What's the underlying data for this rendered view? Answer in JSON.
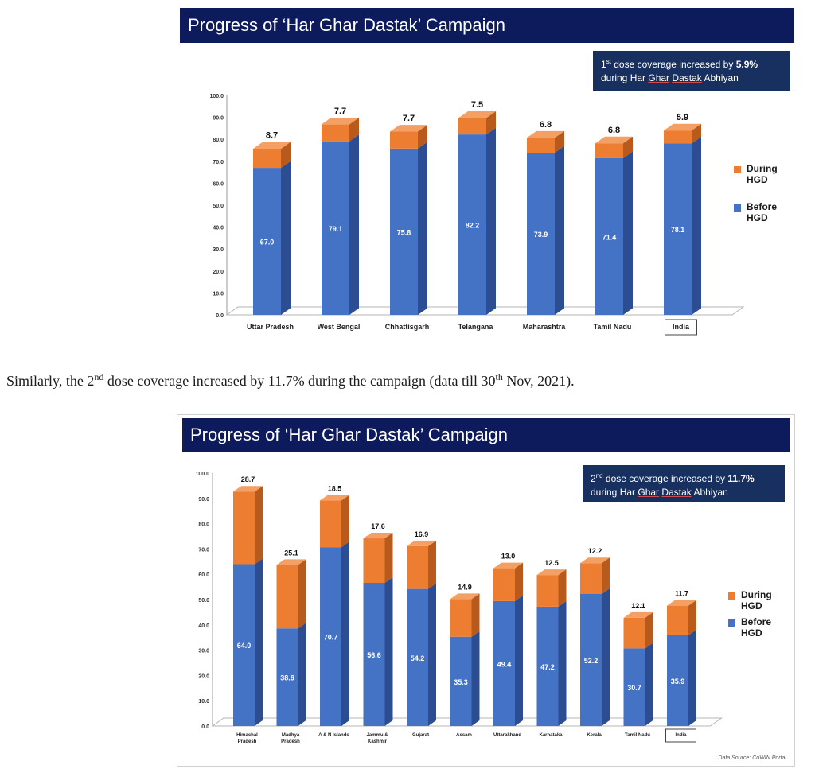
{
  "colors": {
    "before": "#4472c4",
    "before_side": "#2c4d92",
    "before_top": "#6a8fd6",
    "during": "#ed7d31",
    "during_side": "#b85a1c",
    "during_top": "#f4a064",
    "banner": "#0d1a5b",
    "note_bg": "#17305f"
  },
  "caption": {
    "part1": "Similarly, the 2",
    "sup1": "nd",
    "part2": " dose coverage increased by 11.7% during the campaign (data till 30",
    "sup2": "th",
    "part3": " Nov, 2021)."
  },
  "chart_data": [
    {
      "type": "bar",
      "stacked": true,
      "title": "Progress of ‘Har Ghar Dastak’ Campaign",
      "note": {
        "sup": "st",
        "prefix": "1",
        "text": " dose coverage increased by ",
        "value": "5.9%",
        "line2_pre": "during Har ",
        "line2_ul1": "Ghar",
        "line2_mid": " ",
        "line2_ul2": "Dastak",
        "line2_post": " Abhiyan"
      },
      "categories": [
        "Uttar Pradesh",
        "West Bengal",
        "Chhattisgarh",
        "Telangana",
        "Maharashtra",
        "Tamil Nadu",
        "India"
      ],
      "series": [
        {
          "name": "Before HGD",
          "values": [
            67.0,
            79.1,
            75.8,
            82.2,
            73.9,
            71.4,
            78.1
          ],
          "labels": [
            "67.0",
            "79.1",
            "75.8",
            "82.2",
            "73.9",
            "71.4",
            "78.1"
          ]
        },
        {
          "name": "During HGD",
          "values": [
            8.7,
            7.7,
            7.7,
            7.5,
            6.8,
            6.8,
            5.9
          ],
          "labels": [
            "8.7",
            "7.7",
            "7.7",
            "7.5",
            "6.8",
            "6.8",
            "5.9"
          ]
        }
      ],
      "legend": [
        {
          "key": "during",
          "label": "During HGD"
        },
        {
          "key": "before",
          "label": "Before HGD"
        }
      ],
      "yticks": [
        "0.0",
        "10.0",
        "20.0",
        "30.0",
        "40.0",
        "50.0",
        "60.0",
        "70.0",
        "80.0",
        "90.0",
        "100.0"
      ],
      "ylim": [
        0,
        100
      ],
      "legend_position": "right"
    },
    {
      "type": "bar",
      "stacked": true,
      "title": "Progress of ‘Har Ghar Dastak’ Campaign",
      "note": {
        "sup": "nd",
        "prefix": "2",
        "text": " dose coverage increased by ",
        "value": "11.7%",
        "line2_pre": "during Har ",
        "line2_ul1": "Ghar",
        "line2_mid": " ",
        "line2_ul2": "Dastak",
        "line2_post": " Abhiyan"
      },
      "categories": [
        [
          "Himachal",
          "Pradesh"
        ],
        [
          "Madhya",
          "Pradesh"
        ],
        [
          "A & N Islands"
        ],
        [
          "Jammu &",
          "Kashmir"
        ],
        [
          "Gujarat"
        ],
        [
          "Assam"
        ],
        [
          "Uttarakhand"
        ],
        [
          "Karnataka"
        ],
        [
          "Kerala"
        ],
        [
          "Tamil Nadu"
        ],
        [
          "India"
        ]
      ],
      "series": [
        {
          "name": "Before HGD",
          "values": [
            64.0,
            38.6,
            70.7,
            56.6,
            54.2,
            35.3,
            49.4,
            47.2,
            52.2,
            30.7,
            35.9
          ],
          "labels": [
            "64.0",
            "38.6",
            "70.7",
            "56.6",
            "54.2",
            "35.3",
            "49.4",
            "47.2",
            "52.2",
            "30.7",
            "35.9"
          ]
        },
        {
          "name": "During HGD",
          "values": [
            28.7,
            25.1,
            18.5,
            17.6,
            16.9,
            14.9,
            13.0,
            12.5,
            12.2,
            12.1,
            11.7
          ],
          "labels": [
            "28.7",
            "25.1",
            "18.5",
            "17.6",
            "16.9",
            "14.9",
            "13.0",
            "12.5",
            "12.2",
            "12.1",
            "11.7"
          ]
        }
      ],
      "legend": [
        {
          "key": "during",
          "label": "During HGD"
        },
        {
          "key": "before",
          "label": "Before HGD"
        }
      ],
      "yticks": [
        "0.0",
        "10.0",
        "20.0",
        "30.0",
        "40.0",
        "50.0",
        "60.0",
        "70.0",
        "80.0",
        "90.0",
        "100.0"
      ],
      "ylim": [
        0,
        100
      ],
      "legend_position": "right",
      "source": "Data Source: CoWIN Portal"
    }
  ]
}
